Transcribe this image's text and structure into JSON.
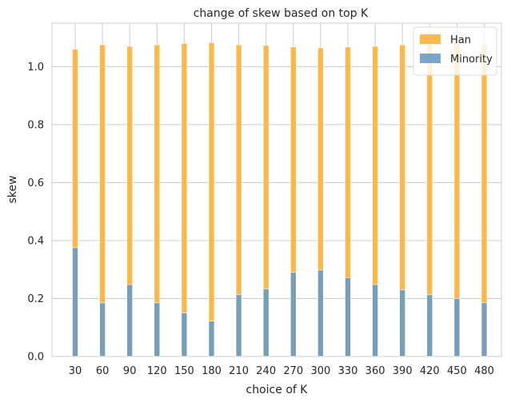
{
  "chart_data": {
    "type": "bar",
    "stacked": false,
    "title": "change of skew based on top K",
    "xlabel": "choice of K",
    "ylabel": "skew",
    "categories": [
      "30",
      "60",
      "90",
      "120",
      "150",
      "180",
      "210",
      "240",
      "270",
      "300",
      "330",
      "360",
      "390",
      "420",
      "450",
      "480"
    ],
    "series": [
      {
        "name": "Han",
        "color": "#fbb13c",
        "alpha": 0.9,
        "values": [
          1.06,
          1.075,
          1.07,
          1.075,
          1.08,
          1.083,
          1.075,
          1.073,
          1.068,
          1.065,
          1.068,
          1.07,
          1.075,
          1.075,
          1.078,
          1.075
        ]
      },
      {
        "name": "Minority",
        "color": "#6d9bc3",
        "alpha": 0.9,
        "values": [
          0.375,
          0.185,
          0.248,
          0.185,
          0.15,
          0.122,
          0.213,
          0.233,
          0.29,
          0.298,
          0.272,
          0.248,
          0.23,
          0.213,
          0.2,
          0.185
        ]
      }
    ],
    "ylim": [
      0,
      1.15
    ],
    "yticks": [
      "0.0",
      "0.2",
      "0.4",
      "0.6",
      "0.8",
      "1.0"
    ],
    "grid": true,
    "legend_position": "top-right"
  }
}
